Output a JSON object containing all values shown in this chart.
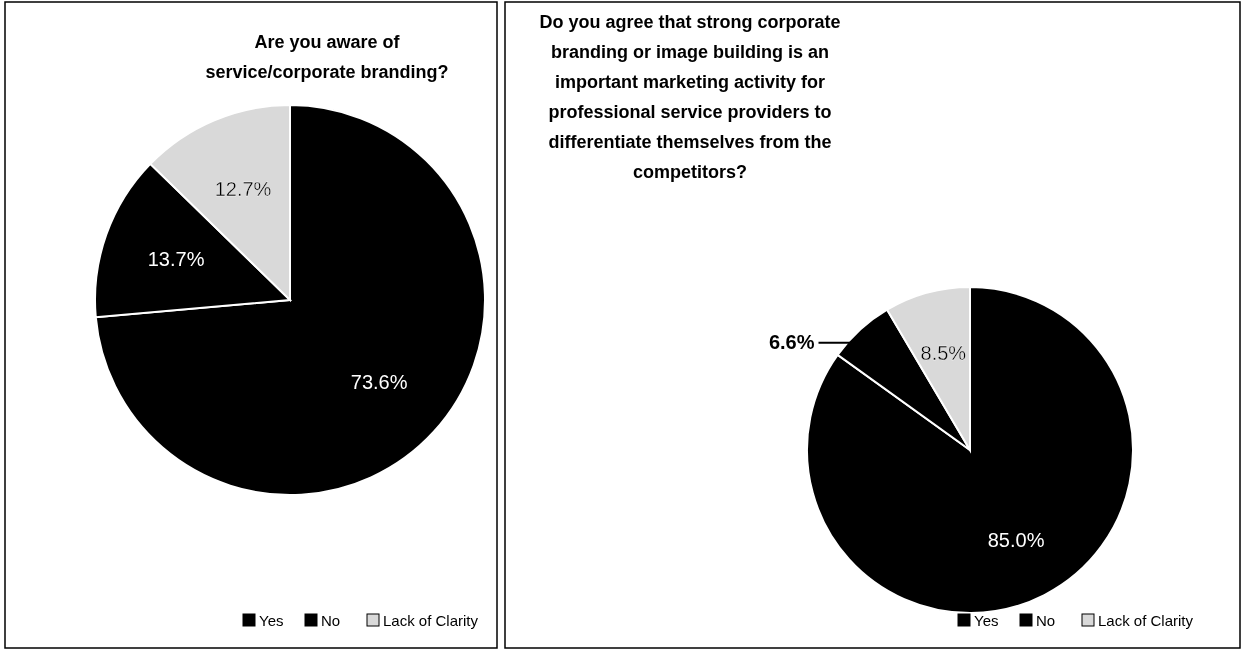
{
  "chart_data": [
    {
      "type": "pie",
      "title": "Are you aware of service/corporate branding?",
      "categories": [
        "Yes",
        "No",
        "Lack of Clarity"
      ],
      "values": [
        73.6,
        13.7,
        12.7
      ],
      "colors": [
        "#000000",
        "#000000",
        "#d9d9d9"
      ],
      "value_labels": [
        "73.6%",
        "13.7%",
        "12.7%"
      ],
      "legend": "bottom"
    },
    {
      "type": "pie",
      "title": "Do you agree that strong corporate branding or image building is an important marketing activity for professional service providers to differentiate themselves from the competitors?",
      "categories": [
        "Yes",
        "No",
        "Lack of Clarity"
      ],
      "values": [
        85.0,
        6.6,
        8.5
      ],
      "colors": [
        "#000000",
        "#000000",
        "#d9d9d9"
      ],
      "value_labels": [
        "85.0%",
        "6.6%",
        "8.5%"
      ],
      "legend": "bottom"
    }
  ]
}
